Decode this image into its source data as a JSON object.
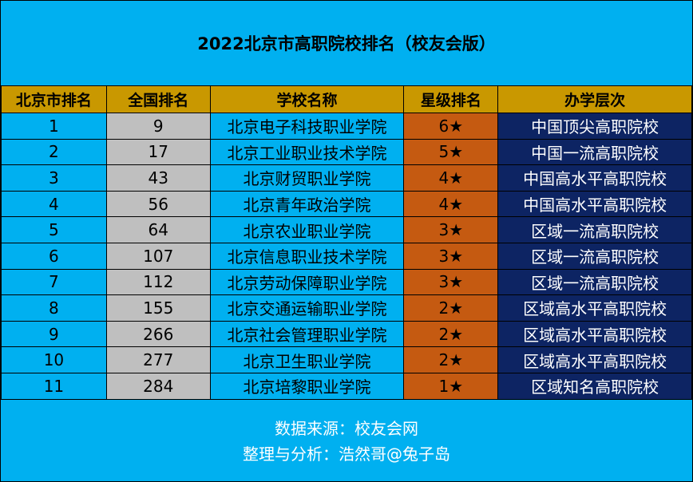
{
  "title": "2022北京市高职院校排名（校友会版）",
  "headers": [
    "北京市排名",
    "全国排名",
    "学校名称",
    "星级排名",
    "办学层次"
  ],
  "rows": [
    [
      "1",
      "9",
      "北京电子科技职业学院",
      "6★",
      "中国顶尖高职院校"
    ],
    [
      "2",
      "17",
      "北京工业职业技术学院",
      "5★",
      "中国一流高职院校"
    ],
    [
      "3",
      "43",
      "北京财贸职业学院",
      "4★",
      "中国高水平高职院校"
    ],
    [
      "4",
      "56",
      "北京青年政治学院",
      "4★",
      "中国高水平高职院校"
    ],
    [
      "5",
      "64",
      "北京农业职业学院",
      "3★",
      "区域一流高职院校"
    ],
    [
      "6",
      "107",
      "北京信息职业技术学院",
      "3★",
      "区域一流高职院校"
    ],
    [
      "7",
      "112",
      "北京劳动保障职业学院",
      "3★",
      "区域一流高职院校"
    ],
    [
      "8",
      "155",
      "北京交通运输职业学院",
      "2★",
      "区域高水平高职院校"
    ],
    [
      "9",
      "266",
      "北京社会管理职业学院",
      "2★",
      "区域高水平高职院校"
    ],
    [
      "10",
      "277",
      "北京卫生职业学院",
      "2★",
      "区域高水平高职院校"
    ],
    [
      "11",
      "284",
      "北京培黎职业学院",
      "1★",
      "区域知名高职院校"
    ]
  ],
  "footer": {
    "source": "数据来源：校友会网",
    "author": "整理与分析：浩然哥@兔子岛"
  },
  "colors": {
    "background": "#00b0f0",
    "header": "#c99800",
    "national_rank": "#bfbfbf",
    "star_rank": "#c55a11",
    "level": "#0d2463"
  }
}
